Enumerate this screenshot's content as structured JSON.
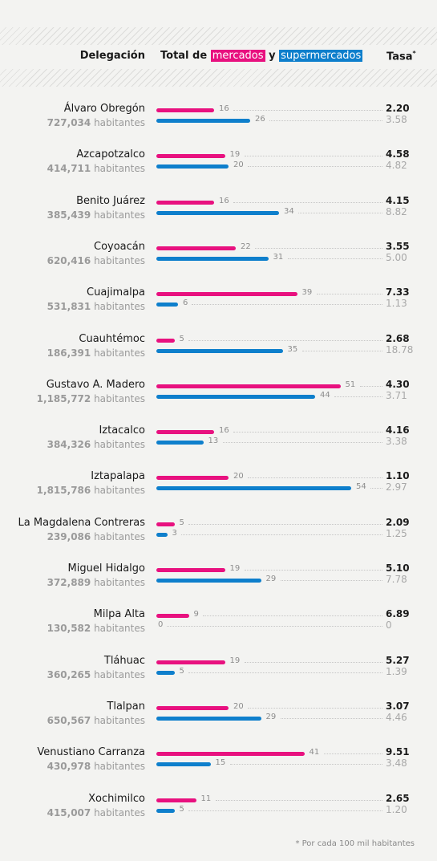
{
  "header": {
    "delegacion": "Delegación",
    "total_prefix": "Total de",
    "mercados": "mercados",
    "y": "y",
    "supermercados": "supermercados",
    "tasa": "Tasa",
    "tasa_mark": "*"
  },
  "footnote": "* Por cada 100 mil habitantes",
  "colors": {
    "mercados": "#e8117f",
    "supermercados": "#0e7fcc",
    "background": "#f3f3f1"
  },
  "chart_data": {
    "type": "bar",
    "orientation": "horizontal",
    "grouped": true,
    "categories": [
      "Álvaro Obregón",
      "Azcapotzalco",
      "Benito Juárez",
      "Coyoacán",
      "Cuajimalpa",
      "Cuauhtémoc",
      "Gustavo A. Madero",
      "Iztacalco",
      "Iztapalapa",
      "La Magdalena Contreras",
      "Miguel Hidalgo",
      "Milpa Alta",
      "Tláhuac",
      "Tlalpan",
      "Venustiano Carranza",
      "Xochimilco"
    ],
    "population": [
      "727,034",
      "414,711",
      "385,439",
      "620,416",
      "531,831",
      "186,391",
      "1,185,772",
      "384,326",
      "1,815,786",
      "239,086",
      "372,889",
      "130,582",
      "360,265",
      "650,567",
      "430,978",
      "415,007"
    ],
    "population_unit": "habitantes",
    "series": [
      {
        "name": "mercados",
        "color": "#e8117f",
        "values": [
          16,
          19,
          16,
          22,
          39,
          5,
          51,
          16,
          20,
          5,
          19,
          9,
          19,
          20,
          41,
          11
        ],
        "rate": [
          "2.20",
          "4.58",
          "4.15",
          "3.55",
          "7.33",
          "2.68",
          "4.30",
          "4.16",
          "1.10",
          "2.09",
          "5.10",
          "6.89",
          "5.27",
          "3.07",
          "9.51",
          "2.65"
        ]
      },
      {
        "name": "supermercados",
        "color": "#0e7fcc",
        "values": [
          26,
          20,
          34,
          31,
          6,
          35,
          44,
          13,
          54,
          3,
          29,
          0,
          5,
          29,
          15,
          5
        ],
        "rate": [
          "3.58",
          "4.82",
          "8.82",
          "5.00",
          "1.13",
          "18.78",
          "3.71",
          "3.38",
          "2.97",
          "1.25",
          "7.78",
          "0",
          "1.39",
          "4.46",
          "3.48",
          "1.20"
        ]
      }
    ],
    "xlim": [
      0,
      54
    ]
  }
}
